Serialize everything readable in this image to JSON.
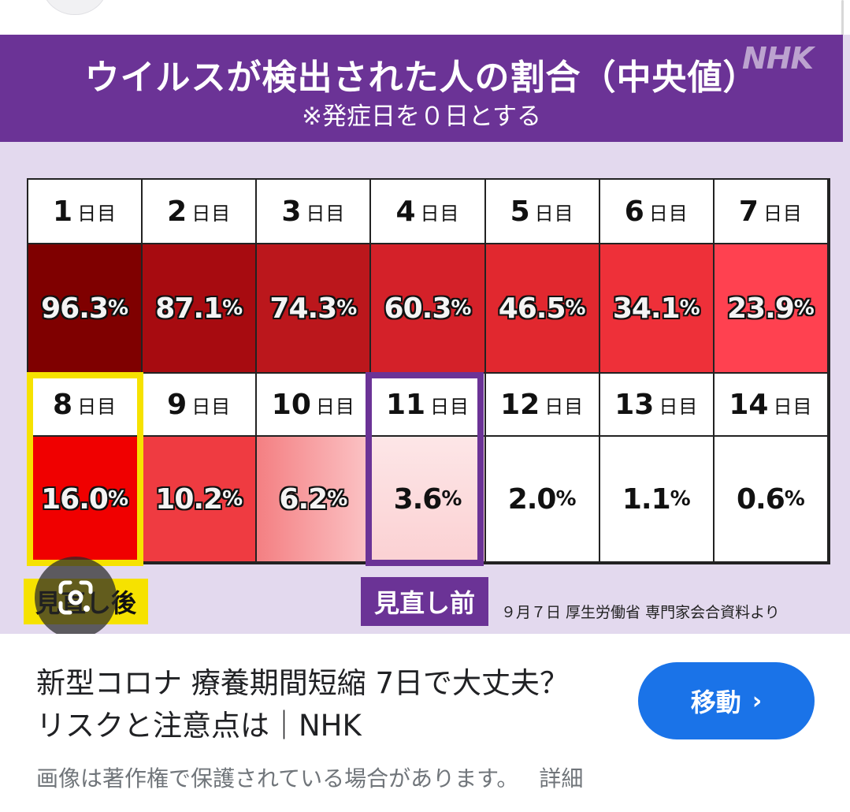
{
  "header": {
    "title": "ウイルスが検出された人の割合（中央値）",
    "subtitle": "※発症日を０日とする",
    "logo": "NHK"
  },
  "day_unit": "日目",
  "days": [
    {
      "num": "1",
      "pct": "96.3"
    },
    {
      "num": "2",
      "pct": "87.1"
    },
    {
      "num": "3",
      "pct": "74.3"
    },
    {
      "num": "4",
      "pct": "60.3"
    },
    {
      "num": "5",
      "pct": "46.5"
    },
    {
      "num": "6",
      "pct": "34.1"
    },
    {
      "num": "7",
      "pct": "23.9"
    },
    {
      "num": "8",
      "pct": "16.0"
    },
    {
      "num": "9",
      "pct": "10.2"
    },
    {
      "num": "10",
      "pct": "6.2"
    },
    {
      "num": "11",
      "pct": "3.6"
    },
    {
      "num": "12",
      "pct": "2.0"
    },
    {
      "num": "13",
      "pct": "1.1"
    },
    {
      "num": "14",
      "pct": "0.6"
    }
  ],
  "percent_sign": "%",
  "colors": {
    "purple": "#6b3396",
    "yellow": "#f6e200",
    "cells": [
      "#7f0000",
      "#a70b10",
      "#bb171c",
      "#d42129",
      "#e1282f",
      "#ee3039",
      "#ff4150",
      "#f00000",
      "#ef3b41",
      "#f47f82",
      "#fbd1d3",
      "#ffffff",
      "#ffffff",
      "#ffffff"
    ]
  },
  "labels": {
    "after": "見直し後",
    "before": "見直し前",
    "source": "９月７日 厚生労働省 専門家会合資料より"
  },
  "result": {
    "title": "新型コロナ 療養期間短縮 7日で大丈夫？ リスクと注意点は｜NHK",
    "button": "移動",
    "caption": "画像は著作権で保護されている場合があります。",
    "detail_link": "詳細"
  },
  "icons": {
    "lens": "google-lens-icon",
    "chevron": "chevron-right-icon"
  }
}
